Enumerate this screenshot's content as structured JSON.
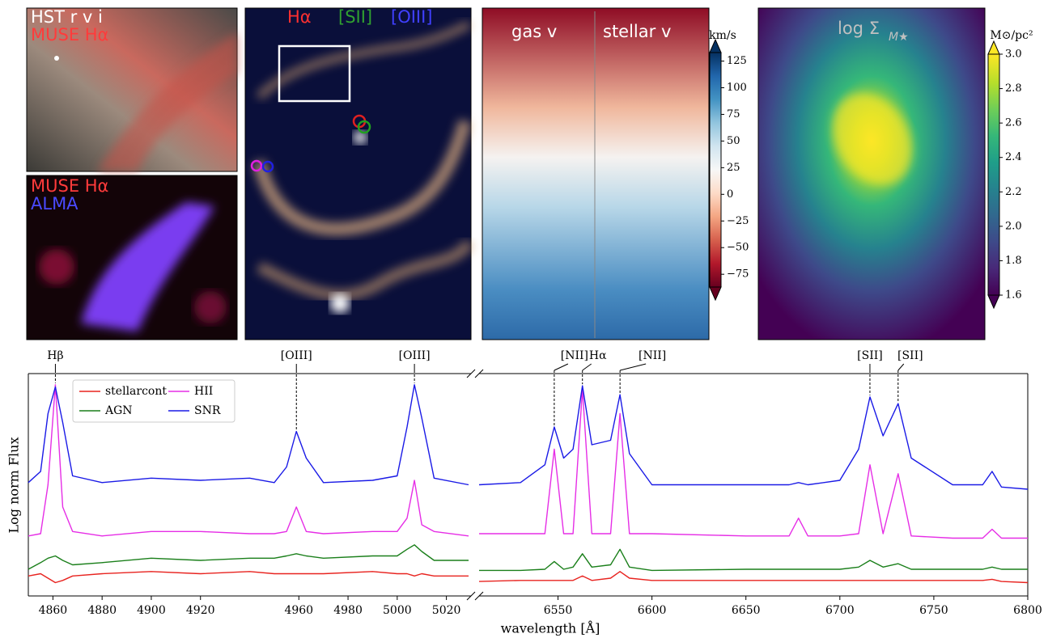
{
  "images": [
    {
      "labels": [
        "HST r v i",
        "MUSE Hα"
      ]
    },
    {
      "labels": [
        "MUSE Hα",
        "ALMA"
      ]
    },
    {
      "labels": [
        "Hα",
        "[SII]",
        "[OIII]"
      ]
    },
    {
      "labels": [
        "gas v",
        "stellar v"
      ]
    },
    {
      "labels": [
        "log Σ"
      ],
      "subscript": "M★"
    }
  ],
  "chart_data": [
    {
      "type": "colorbar",
      "label": "km/s",
      "colormap": "RdBu",
      "extend": "both",
      "ylim": [
        -87,
        133
      ],
      "yticks": [
        {
          "value": -75,
          "label": "−75"
        },
        {
          "value": -50,
          "label": "−50"
        },
        {
          "value": -25,
          "label": "−25"
        },
        0,
        25,
        50,
        75,
        100,
        125
      ]
    },
    {
      "type": "colorbar",
      "label": "M⊙/pc²",
      "colormap": "viridis",
      "extend": "both",
      "ylim": [
        1.6,
        3.0
      ],
      "yticks": [
        1.6,
        1.8,
        {
          "value": 2,
          "label": "2.0"
        },
        2.2,
        2.4,
        2.6,
        2.8,
        {
          "value": 3,
          "label": "3.0"
        }
      ]
    },
    {
      "type": "line",
      "xlabel": "wavelength [Å]",
      "ylabel": "Log norm Flux",
      "legend": "upper left",
      "ylim": [
        0,
        10
      ],
      "panels": [
        {
          "xlim": [
            4850,
            5030
          ],
          "xticks": [
            4860,
            4880,
            4900,
            4920,
            4960,
            4980,
            5000,
            5020
          ]
        },
        {
          "xlim": [
            6508,
            6800
          ],
          "xticks": [
            6550,
            6600,
            6650,
            6700,
            6750,
            6800
          ]
        }
      ],
      "x": [
        4850,
        4855,
        4858,
        4861,
        4864,
        4868,
        4880,
        4900,
        4920,
        4940,
        4950,
        4955,
        4959,
        4963,
        4970,
        4990,
        5000,
        5004,
        5007,
        5010,
        5015,
        5029,
        6508,
        6530,
        6543,
        6548,
        6553,
        6558,
        6563,
        6568,
        6578,
        6583,
        6588,
        6600,
        6650,
        6673,
        6678,
        6683,
        6700,
        6710,
        6716,
        6723,
        6731,
        6738,
        6760,
        6776,
        6781,
        6786,
        6800
      ],
      "series": [
        {
          "name": "stellarcont",
          "color": "#e8231f",
          "values": [
            0.9,
            1.0,
            0.8,
            0.6,
            0.7,
            0.9,
            1.0,
            1.1,
            1.0,
            1.1,
            1.0,
            1.0,
            1.0,
            1.0,
            1.0,
            1.1,
            1.0,
            1.0,
            0.9,
            1.0,
            0.9,
            0.9,
            0.65,
            0.7,
            0.7,
            0.7,
            0.7,
            0.7,
            0.9,
            0.7,
            0.8,
            1.1,
            0.8,
            0.7,
            0.7,
            0.7,
            0.7,
            0.7,
            0.7,
            0.7,
            0.7,
            0.7,
            0.7,
            0.7,
            0.7,
            0.7,
            0.75,
            0.65,
            0.6
          ]
        },
        {
          "name": "AGN",
          "color": "#1a7f1a",
          "values": [
            1.2,
            1.5,
            1.7,
            1.8,
            1.6,
            1.4,
            1.5,
            1.7,
            1.6,
            1.7,
            1.7,
            1.8,
            1.9,
            1.8,
            1.7,
            1.8,
            1.8,
            2.1,
            2.3,
            2.0,
            1.6,
            1.6,
            1.15,
            1.15,
            1.2,
            1.55,
            1.2,
            1.3,
            1.9,
            1.3,
            1.4,
            2.1,
            1.3,
            1.15,
            1.2,
            1.2,
            1.2,
            1.2,
            1.2,
            1.3,
            1.6,
            1.3,
            1.45,
            1.2,
            1.2,
            1.2,
            1.3,
            1.2,
            1.2
          ]
        },
        {
          "name": "HII",
          "color": "#e62ee6",
          "values": [
            2.7,
            2.8,
            5.0,
            9.5,
            4.0,
            2.9,
            2.7,
            2.9,
            2.9,
            2.8,
            2.8,
            2.9,
            4.0,
            2.9,
            2.8,
            2.9,
            2.9,
            3.5,
            5.2,
            3.2,
            2.9,
            2.7,
            2.8,
            2.8,
            2.8,
            6.6,
            2.8,
            2.8,
            9.3,
            2.8,
            2.8,
            8.2,
            2.8,
            2.8,
            2.7,
            2.7,
            3.5,
            2.7,
            2.7,
            2.8,
            5.9,
            2.8,
            5.5,
            2.7,
            2.6,
            2.6,
            3.0,
            2.6,
            2.6
          ]
        },
        {
          "name": "SNR",
          "color": "#1a1ae6",
          "values": [
            5.1,
            5.6,
            8.2,
            9.4,
            7.8,
            5.4,
            5.1,
            5.3,
            5.2,
            5.3,
            5.1,
            5.8,
            7.4,
            6.2,
            5.1,
            5.2,
            5.4,
            7.6,
            9.5,
            8.0,
            5.3,
            5.0,
            5.0,
            5.1,
            5.9,
            7.6,
            6.2,
            6.6,
            9.45,
            6.8,
            7.0,
            9.05,
            6.4,
            5.0,
            5.0,
            5.0,
            5.1,
            5.0,
            5.2,
            6.6,
            8.95,
            7.2,
            8.65,
            6.2,
            5.0,
            5.0,
            5.6,
            4.9,
            4.8
          ]
        }
      ],
      "annotations": [
        {
          "text": "Hβ",
          "x": 4861
        },
        {
          "text": "[OIII]",
          "x": 4959
        },
        {
          "text": "[OIII]",
          "x": 5007
        },
        {
          "text": "[NII]",
          "x": 6548
        },
        {
          "text": "Hα",
          "x": 6563
        },
        {
          "text": "[NII]",
          "x": 6583
        },
        {
          "text": "[SII]",
          "x": 6716
        },
        {
          "text": "[SII]",
          "x": 6731
        }
      ]
    }
  ]
}
